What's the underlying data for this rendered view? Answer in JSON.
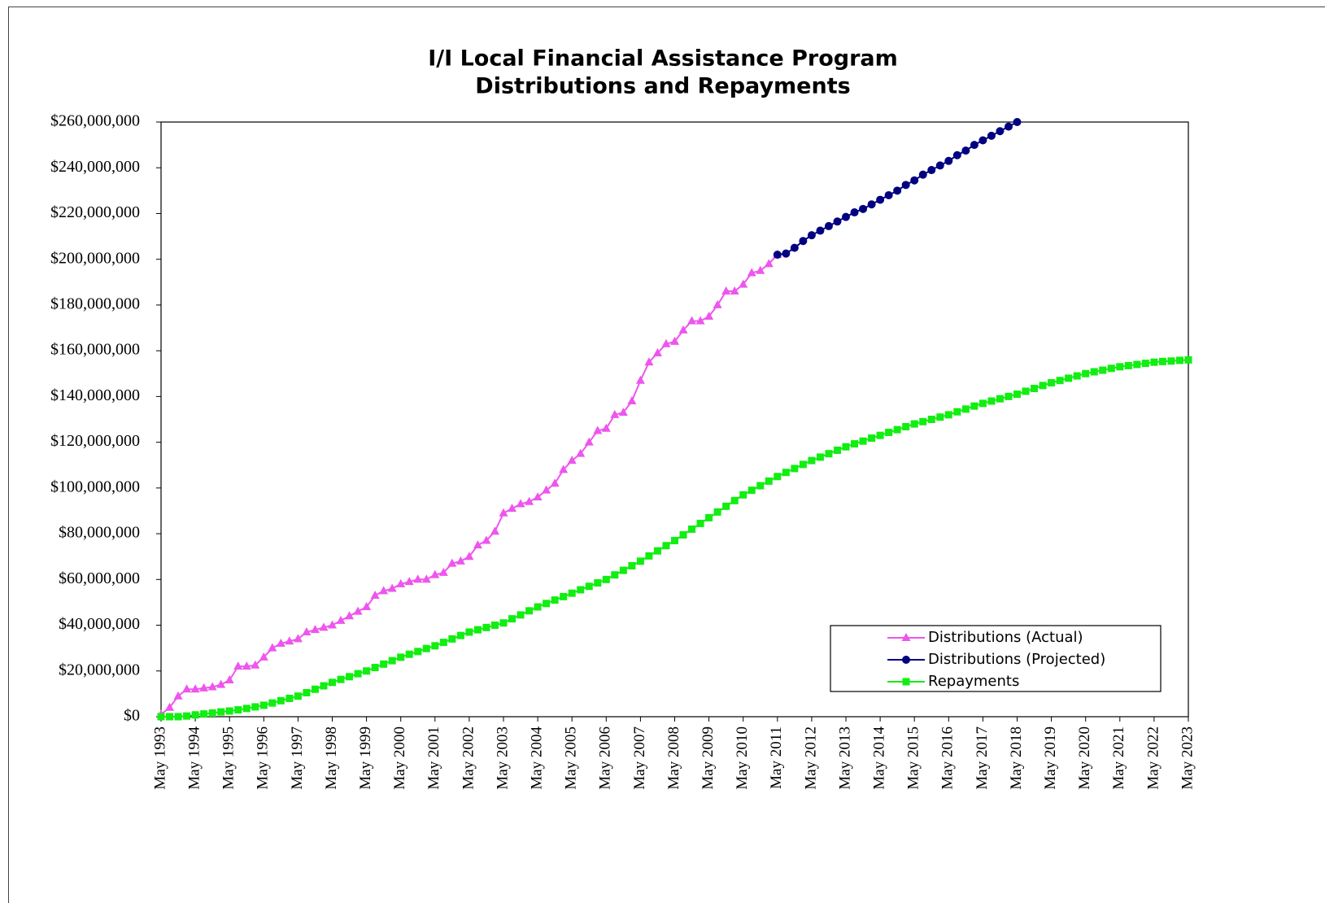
{
  "chart_data": {
    "type": "line",
    "title": "I/I Local Financial Assistance Program",
    "subtitle": "Distributions and Repayments",
    "categories": [
      "May 1993",
      null,
      null,
      null,
      "May 1994",
      null,
      null,
      null,
      "May 1995",
      null,
      null,
      null,
      "May 1996",
      null,
      null,
      null,
      "May 1997",
      null,
      null,
      null,
      "May 1998",
      null,
      null,
      null,
      "May 1999",
      null,
      null,
      null,
      "May 2000",
      null,
      null,
      null,
      "May 2001",
      null,
      null,
      null,
      "May 2002",
      null,
      null,
      null,
      "May 2003",
      null,
      null,
      null,
      "May 2004",
      null,
      null,
      null,
      "May 2005",
      null,
      null,
      null,
      "May 2006",
      null,
      null,
      null,
      "May 2007",
      null,
      null,
      null,
      "May 2008",
      null,
      null,
      null,
      "May 2009",
      null,
      null,
      null,
      "May 2010",
      null,
      null,
      null,
      "May 2011",
      null,
      null,
      null,
      "May 2012",
      null,
      null,
      null,
      "May 2013",
      null,
      null,
      null,
      "May 2014",
      null,
      null,
      null,
      "May 2015",
      null,
      null,
      null,
      "May 2016",
      null,
      null,
      null,
      "May 2017",
      null,
      null,
      null,
      "May 2018",
      null,
      null,
      null,
      "May 2019",
      null,
      null,
      null,
      "May 2020",
      null,
      null,
      null,
      "May 2021",
      null,
      null,
      null,
      "May 2022",
      null,
      null,
      null,
      "May 2023"
    ],
    "series": [
      {
        "name": "Distributions (Actual)",
        "color": "#ee55ee",
        "marker": "triangle",
        "values": [
          1000000,
          4000000,
          9000000,
          12000000,
          12000000,
          12500000,
          13000000,
          14000000,
          16000000,
          22000000,
          22000000,
          22500000,
          26000000,
          30000000,
          32000000,
          33000000,
          34000000,
          37000000,
          38000000,
          39000000,
          40000000,
          42000000,
          44000000,
          46000000,
          48000000,
          53000000,
          55000000,
          56000000,
          58000000,
          59000000,
          60000000,
          60000000,
          62000000,
          63000000,
          67000000,
          68000000,
          70000000,
          75000000,
          77000000,
          81000000,
          89000000,
          91000000,
          93000000,
          94000000,
          96000000,
          99000000,
          102000000,
          108000000,
          112000000,
          115000000,
          120000000,
          125000000,
          126000000,
          132000000,
          133000000,
          138000000,
          147000000,
          155000000,
          159000000,
          163000000,
          164000000,
          169000000,
          173000000,
          173000000,
          175000000,
          180000000,
          186000000,
          186000000,
          189000000,
          194000000,
          195000000,
          198000000,
          202000000,
          null,
          null,
          null,
          null,
          null,
          null,
          null,
          null,
          null,
          null,
          null,
          null,
          null,
          null,
          null,
          null,
          null,
          null,
          null,
          null,
          null,
          null,
          null,
          null,
          null,
          null,
          null,
          null,
          null,
          null,
          null,
          null,
          null,
          null,
          null,
          null,
          null,
          null,
          null,
          null,
          null,
          null,
          null,
          null,
          null,
          null,
          null,
          null
        ]
      },
      {
        "name": "Distributions (Projected)",
        "color": "#000080",
        "marker": "circle",
        "values": [
          null,
          null,
          null,
          null,
          null,
          null,
          null,
          null,
          null,
          null,
          null,
          null,
          null,
          null,
          null,
          null,
          null,
          null,
          null,
          null,
          null,
          null,
          null,
          null,
          null,
          null,
          null,
          null,
          null,
          null,
          null,
          null,
          null,
          null,
          null,
          null,
          null,
          null,
          null,
          null,
          null,
          null,
          null,
          null,
          null,
          null,
          null,
          null,
          null,
          null,
          null,
          null,
          null,
          null,
          null,
          null,
          null,
          null,
          null,
          null,
          null,
          null,
          null,
          null,
          null,
          null,
          null,
          null,
          null,
          null,
          null,
          null,
          202000000,
          202500000,
          205000000,
          208000000,
          210500000,
          212500000,
          214500000,
          216500000,
          218500000,
          220500000,
          222000000,
          224000000,
          226000000,
          228000000,
          230000000,
          232500000,
          234500000,
          237000000,
          239000000,
          241000000,
          243000000,
          245500000,
          247500000,
          250000000,
          252000000,
          254000000,
          256000000,
          258000000,
          260000000,
          null,
          null,
          null,
          null,
          null,
          null,
          null,
          null,
          null,
          null,
          null,
          null,
          null,
          null,
          null,
          null,
          null,
          null,
          null,
          null
        ]
      },
      {
        "name": "Repayments",
        "color": "#11ee11",
        "marker": "square",
        "values": [
          0,
          0,
          0,
          300000,
          800000,
          1200000,
          1600000,
          2100000,
          2500000,
          3000000,
          3600000,
          4300000,
          5000000,
          6000000,
          7000000,
          8000000,
          9000000,
          10500000,
          12000000,
          13500000,
          15000000,
          16300000,
          17500000,
          18800000,
          20000000,
          21500000,
          23000000,
          24500000,
          26000000,
          27300000,
          28500000,
          29800000,
          31000000,
          32500000,
          34000000,
          35500000,
          37000000,
          38000000,
          39000000,
          40000000,
          41000000,
          42800000,
          44500000,
          46300000,
          48000000,
          49500000,
          51000000,
          52500000,
          54000000,
          55500000,
          57000000,
          58500000,
          60000000,
          62000000,
          64000000,
          66000000,
          68000000,
          70300000,
          72500000,
          74800000,
          77000000,
          79500000,
          82000000,
          84500000,
          87000000,
          89500000,
          92000000,
          94500000,
          97000000,
          99000000,
          101000000,
          103000000,
          105000000,
          106800000,
          108500000,
          110300000,
          112000000,
          113500000,
          115000000,
          116500000,
          118000000,
          119300000,
          120500000,
          121800000,
          123000000,
          124300000,
          125500000,
          126800000,
          128000000,
          129000000,
          130000000,
          131000000,
          132000000,
          133300000,
          134500000,
          135800000,
          137000000,
          138000000,
          139000000,
          140000000,
          141000000,
          142300000,
          143500000,
          144800000,
          146000000,
          147000000,
          148000000,
          149000000,
          150000000,
          150800000,
          151500000,
          152300000,
          153000000,
          153500000,
          154000000,
          154500000,
          155000000,
          155300000,
          155500000,
          155800000,
          156000000
        ]
      }
    ],
    "ylim": [
      0,
      260000000
    ],
    "yticks": [
      {
        "value": 0,
        "label": "$0"
      },
      {
        "value": 20000000,
        "label": "$20,000,000"
      },
      {
        "value": 40000000,
        "label": "$40,000,000"
      },
      {
        "value": 60000000,
        "label": "$60,000,000"
      },
      {
        "value": 80000000,
        "label": "$80,000,000"
      },
      {
        "value": 100000000,
        "label": "$100,000,000"
      },
      {
        "value": 120000000,
        "label": "$120,000,000"
      },
      {
        "value": 140000000,
        "label": "$140,000,000"
      },
      {
        "value": 160000000,
        "label": "$160,000,000"
      },
      {
        "value": 180000000,
        "label": "$180,000,000"
      },
      {
        "value": 200000000,
        "label": "$200,000,000"
      },
      {
        "value": 220000000,
        "label": "$220,000,000"
      },
      {
        "value": 240000000,
        "label": "$240,000,000"
      },
      {
        "value": 260000000,
        "label": "$260,000,000"
      }
    ],
    "grid": false,
    "legend": "lower right"
  }
}
